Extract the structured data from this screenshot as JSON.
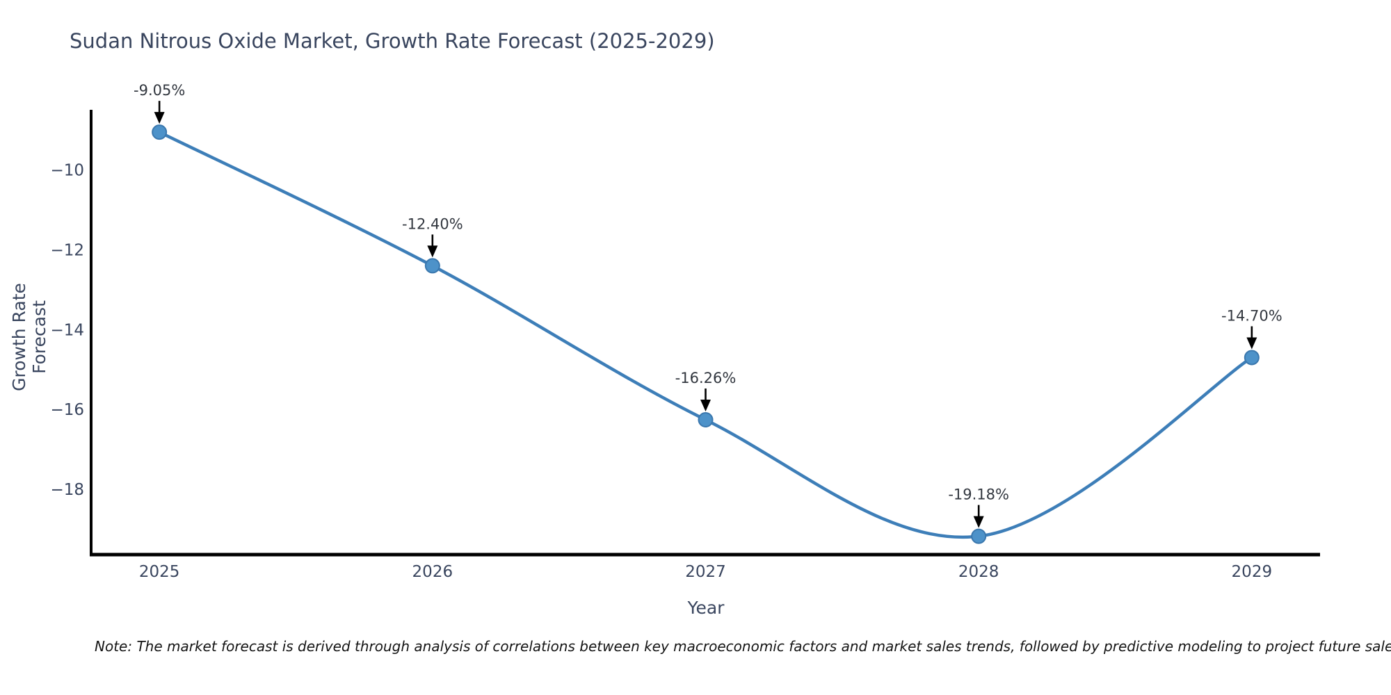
{
  "title": "Sudan Nitrous Oxide Market, Growth Rate Forecast (2025-2029)",
  "note": "Note: The market forecast is derived through analysis of correlations between key macroeconomic factors and market sales trends, followed by predictive modeling to project future sales",
  "chart_data": {
    "type": "line",
    "x": [
      2025,
      2026,
      2027,
      2028,
      2029
    ],
    "values": [
      -9.05,
      -12.4,
      -16.26,
      -19.18,
      -14.7
    ],
    "point_labels": [
      "-9.05%",
      "-12.40%",
      "-16.26%",
      "-19.18%",
      "-14.70%"
    ],
    "categories": [
      "2025",
      "2026",
      "2027",
      "2028",
      "2029"
    ],
    "title": "Sudan Nitrous Oxide Market, Growth Rate Forecast (2025-2029)",
    "xlabel": "Year",
    "ylabel": "Growth Rate Forecast",
    "yticks": [
      -10,
      -12,
      -14,
      -16,
      -18
    ],
    "ytick_labels": [
      "−10",
      "−12",
      "−14",
      "−16",
      "−18"
    ],
    "ylim": [
      -19.64,
      -8.49
    ],
    "xlim": [
      2024.75,
      2029.25
    ],
    "grid": false,
    "legend": "none",
    "line_color": "#3d7eb8",
    "marker_color": "#4d92c9",
    "marker_edge_color": "#3a77ad",
    "annotation_arrow_color": "#000000",
    "axis_color": "#000000",
    "text_color": "#39455e"
  }
}
